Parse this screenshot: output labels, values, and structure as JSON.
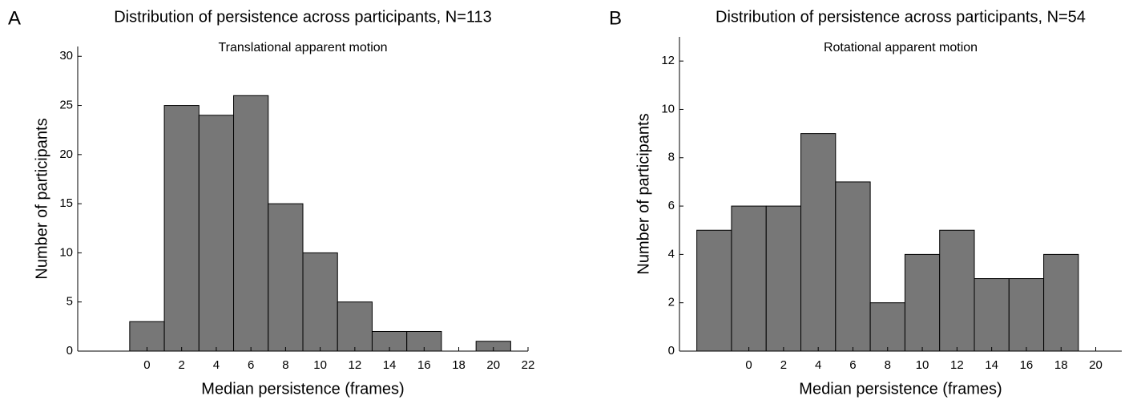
{
  "chart_data": [
    {
      "type": "histogram",
      "panel_label": "A",
      "title": "Distribution of persistence across participants, N=113",
      "subtitle": "Translational apparent motion",
      "xlabel": "Median persistence (frames)",
      "ylabel": "Number of participants",
      "bins": [
        -1,
        1,
        3,
        5,
        7,
        9,
        11,
        13,
        15,
        17,
        19,
        21
      ],
      "values": [
        3,
        25,
        24,
        26,
        15,
        10,
        5,
        2,
        2,
        0,
        1
      ],
      "color": "#777777",
      "xlim": [
        -4,
        22
      ],
      "xticks": [
        0,
        2,
        4,
        6,
        8,
        10,
        12,
        14,
        16,
        18,
        20,
        22
      ],
      "ylim": [
        0,
        31
      ],
      "yticks": [
        0,
        5,
        10,
        15,
        20,
        25,
        30
      ]
    },
    {
      "type": "histogram",
      "panel_label": "B",
      "title": "Distribution of persistence across participants, N=54",
      "subtitle": "Rotational apparent motion",
      "xlabel": "Median persistence (frames)",
      "ylabel": "Number of participants",
      "bins": [
        -3,
        -1,
        1,
        3,
        5,
        7,
        9,
        11,
        13,
        15,
        17,
        19
      ],
      "values": [
        5,
        6,
        6,
        9,
        7,
        2,
        4,
        5,
        3,
        3,
        4
      ],
      "color": "#777777",
      "xlim": [
        -4,
        21.5
      ],
      "xticks": [
        0,
        2,
        4,
        6,
        8,
        10,
        12,
        14,
        16,
        18,
        20
      ],
      "ylim": [
        0,
        13
      ],
      "yticks": [
        0,
        2,
        4,
        6,
        8,
        10,
        12
      ]
    }
  ]
}
